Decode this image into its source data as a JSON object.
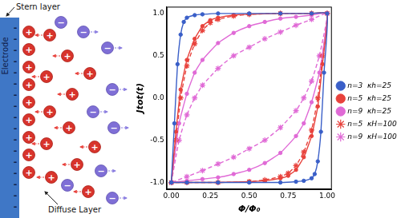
{
  "chart_data": {
    "type": "line",
    "x_label": "Φ/Φ₀",
    "y_label": "Jtot(t)",
    "xlim": [
      -0.03,
      1.03
    ],
    "xticks": [
      {
        "value": 0,
        "label": "0.00"
      },
      {
        "value": 0.25,
        "label": "0.25"
      },
      {
        "value": 0.5,
        "label": "0.50"
      },
      {
        "value": 0.75,
        "label": "0.75"
      },
      {
        "value": 1,
        "label": "1.00"
      }
    ],
    "ylim": [
      -1.08,
      1.08
    ],
    "yticks": [
      {
        "value": -1,
        "label": "-1.0"
      },
      {
        "value": -0.5,
        "label": "-0.5"
      },
      {
        "value": 0,
        "label": "0.0"
      },
      {
        "value": 0.5,
        "label": "0.5"
      },
      {
        "value": 1,
        "label": "1.0"
      }
    ],
    "grid": false,
    "legend": "right",
    "series": [
      {
        "name": "n=3  κh=25",
        "color": "#3a5fc8",
        "marker": "circle",
        "line_style": "solid",
        "x": [
          0,
          0.02,
          0.04,
          0.06,
          0.08,
          0.1,
          0.15,
          0.2,
          0.3,
          0.5,
          0.7,
          0.9,
          1,
          0.98,
          0.96,
          0.94,
          0.92,
          0.9,
          0.85,
          0.8,
          0.7,
          0.5,
          0.3,
          0.1,
          0
        ],
        "values": [
          -1,
          -0.3,
          0.4,
          0.75,
          0.9,
          0.95,
          0.98,
          0.99,
          1,
          1,
          1,
          1,
          1,
          0.3,
          -0.4,
          -0.75,
          -0.9,
          -0.95,
          -0.98,
          -0.99,
          -1,
          -1,
          -1,
          -1,
          -1
        ]
      },
      {
        "name": "n=5  κh=25",
        "color": "#e8423c",
        "marker": "circle",
        "line_style": "solid",
        "x": [
          0,
          0.03,
          0.06,
          0.1,
          0.15,
          0.2,
          0.25,
          0.3,
          0.4,
          0.5,
          0.7,
          0.9,
          1,
          0.97,
          0.94,
          0.9,
          0.85,
          0.8,
          0.75,
          0.7,
          0.6,
          0.5,
          0.3,
          0.1,
          0
        ],
        "values": [
          -1,
          -0.4,
          0.1,
          0.45,
          0.7,
          0.85,
          0.92,
          0.95,
          0.98,
          0.99,
          1,
          1,
          1,
          0.4,
          -0.1,
          -0.45,
          -0.7,
          -0.85,
          -0.92,
          -0.95,
          -0.98,
          -0.99,
          -1,
          -1,
          -1
        ]
      },
      {
        "name": "n=9  κh=25",
        "color": "#e06ad6",
        "marker": "circle",
        "line_style": "solid",
        "x": [
          0,
          0.05,
          0.1,
          0.15,
          0.2,
          0.3,
          0.4,
          0.5,
          0.6,
          0.7,
          0.8,
          0.9,
          1,
          0.95,
          0.9,
          0.85,
          0.8,
          0.7,
          0.6,
          0.5,
          0.4,
          0.3,
          0.2,
          0.1,
          0
        ],
        "values": [
          -1,
          -0.3,
          0.05,
          0.3,
          0.45,
          0.65,
          0.77,
          0.85,
          0.9,
          0.94,
          0.96,
          0.98,
          1,
          0.3,
          -0.05,
          -0.3,
          -0.45,
          -0.65,
          -0.77,
          -0.85,
          -0.9,
          -0.94,
          -0.96,
          -0.98,
          -1
        ]
      },
      {
        "name": "n=5  κH=100",
        "color": "#e8423c",
        "marker": "star",
        "line_style": "dashed",
        "x": [
          0,
          0.03,
          0.06,
          0.1,
          0.15,
          0.2,
          0.25,
          0.3,
          0.4,
          0.5,
          0.7,
          0.9,
          1,
          0.97,
          0.94,
          0.9,
          0.85,
          0.8,
          0.75,
          0.7,
          0.6,
          0.5,
          0.3,
          0.1,
          0
        ],
        "values": [
          -1,
          -0.5,
          0,
          0.38,
          0.64,
          0.8,
          0.89,
          0.93,
          0.97,
          0.99,
          1,
          1,
          1,
          0.5,
          0,
          -0.38,
          -0.64,
          -0.8,
          -0.89,
          -0.93,
          -0.97,
          -0.99,
          -1,
          -1,
          -1
        ]
      },
      {
        "name": "n=9  κH=100",
        "color": "#e06ad6",
        "marker": "star",
        "line_style": "dashed",
        "x": [
          0,
          0.05,
          0.1,
          0.15,
          0.2,
          0.3,
          0.4,
          0.5,
          0.6,
          0.7,
          0.8,
          0.9,
          1,
          0.95,
          0.9,
          0.85,
          0.8,
          0.7,
          0.6,
          0.5,
          0.4,
          0.3,
          0.2,
          0.1,
          0
        ],
        "values": [
          -1,
          -0.5,
          -0.2,
          0,
          0.15,
          0.35,
          0.5,
          0.6,
          0.7,
          0.78,
          0.86,
          0.93,
          1,
          0.5,
          0.2,
          0,
          -0.15,
          -0.35,
          -0.5,
          -0.6,
          -0.7,
          -0.78,
          -0.86,
          -0.93,
          -1
        ]
      }
    ]
  },
  "diagram": {
    "top_label": "Stern layer",
    "electrode_label": "Electrode",
    "bottom_label": "Diffuse Layer",
    "cation_sign": "+",
    "anion_sign": "−",
    "electrode_sign": "-"
  }
}
